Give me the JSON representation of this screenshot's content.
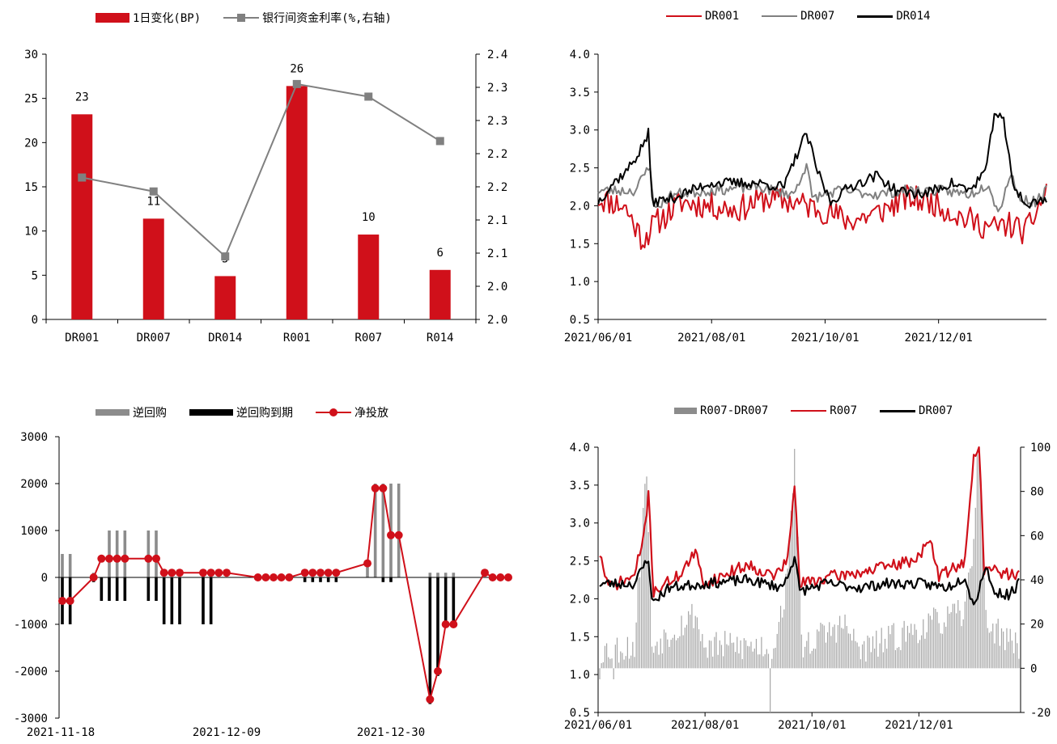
{
  "chart_data": [
    {
      "id": "tl",
      "type": "bar+line",
      "categories": [
        "DR001",
        "DR007",
        "DR014",
        "R001",
        "R007",
        "R014"
      ],
      "series": [
        {
          "name": "1日变化(BP)",
          "type": "bar",
          "axis": "left",
          "color": "#d0101a",
          "values": [
            23.2,
            11.4,
            4.9,
            26.4,
            9.6,
            5.6
          ],
          "labels": [
            "23",
            "11",
            "5",
            "26",
            "10",
            "6"
          ]
        },
        {
          "name": "银行间资金利率(%,右轴)",
          "type": "line",
          "axis": "right",
          "color": "#808080",
          "values": [
            2.214,
            2.193,
            2.095,
            2.355,
            2.336,
            2.269
          ]
        }
      ],
      "y_left": {
        "min": 0,
        "max": 30,
        "step": 5
      },
      "y_right": {
        "min": 2.0,
        "max": 2.4,
        "step": 0.05,
        "tick_labels": [
          "2.0",
          "2.0",
          "2.1",
          "2.1",
          "2.2",
          "2.2",
          "2.3",
          "2.3",
          "2.4"
        ]
      },
      "legend_position": "top",
      "grid": false
    },
    {
      "id": "tr",
      "type": "line",
      "x_ticks": [
        "2021/06/01",
        "2021/08/01",
        "2021/10/01",
        "2021/12/01"
      ],
      "x_range": [
        "2021/06/01",
        "2022/01/28"
      ],
      "y": {
        "min": 0.5,
        "max": 4.0,
        "step": 0.5,
        "tick_labels": [
          "0.5",
          "1.0",
          "1.5",
          "2.0",
          "2.5",
          "3.0",
          "3.5",
          "4.0"
        ]
      },
      "series": [
        {
          "name": "DR001",
          "color": "#d0101a",
          "generated": true,
          "seed": 11,
          "base": 2.05,
          "noise": 0.18,
          "anchors": [
            [
              0,
              2.1
            ],
            [
              14,
              2.0
            ],
            [
              24,
              1.55
            ],
            [
              30,
              1.75
            ],
            [
              45,
              2.05
            ],
            [
              60,
              2.0
            ],
            [
              75,
              1.95
            ],
            [
              90,
              2.1
            ],
            [
              105,
              2.05
            ],
            [
              120,
              1.95
            ],
            [
              135,
              1.8
            ],
            [
              150,
              1.9
            ],
            [
              165,
              2.1
            ],
            [
              180,
              2.05
            ],
            [
              195,
              1.85
            ],
            [
              212,
              1.7
            ],
            [
              221,
              1.75
            ],
            [
              230,
              1.65
            ],
            [
              241,
              2.2
            ]
          ]
        },
        {
          "name": "DR007",
          "color": "#808080",
          "generated": true,
          "seed": 23,
          "base": 2.2,
          "noise": 0.07,
          "anchors": [
            [
              0,
              2.2
            ],
            [
              20,
              2.2
            ],
            [
              28,
              2.55
            ],
            [
              30,
              1.95
            ],
            [
              40,
              2.15
            ],
            [
              60,
              2.2
            ],
            [
              85,
              2.25
            ],
            [
              105,
              2.15
            ],
            [
              112,
              2.55
            ],
            [
              115,
              2.1
            ],
            [
              130,
              2.2
            ],
            [
              150,
              2.15
            ],
            [
              165,
              2.2
            ],
            [
              185,
              2.2
            ],
            [
              200,
              2.15
            ],
            [
              210,
              2.3
            ],
            [
              215,
              1.9
            ],
            [
              222,
              2.45
            ],
            [
              226,
              2.1
            ],
            [
              235,
              2.05
            ],
            [
              241,
              2.2
            ]
          ]
        },
        {
          "name": "DR014",
          "color": "#000000",
          "generated": true,
          "seed": 37,
          "base": 2.2,
          "noise": 0.07,
          "anchors": [
            [
              0,
              2.05
            ],
            [
              8,
              2.3
            ],
            [
              15,
              2.45
            ],
            [
              22,
              2.7
            ],
            [
              27,
              2.95
            ],
            [
              29,
              2.05
            ],
            [
              40,
              2.1
            ],
            [
              60,
              2.3
            ],
            [
              85,
              2.3
            ],
            [
              100,
              2.25
            ],
            [
              108,
              2.75
            ],
            [
              112,
              2.95
            ],
            [
              118,
              2.45
            ],
            [
              125,
              2.05
            ],
            [
              135,
              2.25
            ],
            [
              150,
              2.4
            ],
            [
              160,
              2.2
            ],
            [
              175,
              2.15
            ],
            [
              190,
              2.3
            ],
            [
              200,
              2.2
            ],
            [
              209,
              2.5
            ],
            [
              213,
              3.25
            ],
            [
              218,
              3.1
            ],
            [
              223,
              2.3
            ],
            [
              230,
              2.0
            ],
            [
              241,
              2.1
            ]
          ]
        }
      ],
      "legend_position": "top",
      "grid": false
    },
    {
      "id": "bl",
      "type": "bar+line",
      "x_ticks": [
        {
          "i": 0,
          "label": "2021-11-18"
        },
        {
          "i": 21,
          "label": "2021-12-09"
        },
        {
          "i": 42,
          "label": "2021-12-30"
        }
      ],
      "x_count": 58,
      "y": {
        "min": -3000,
        "max": 3000,
        "step": 1000,
        "tick_labels": [
          "-3000",
          "-2000",
          "-1000",
          "0",
          "1000",
          "2000",
          "3000"
        ]
      },
      "series": [
        {
          "name": "逆回购",
          "type": "bar",
          "color": "#8c8c8c",
          "points": [
            [
              0,
              500
            ],
            [
              1,
              500
            ],
            [
              4,
              100
            ],
            [
              6,
              1000
            ],
            [
              7,
              1000
            ],
            [
              8,
              1000
            ],
            [
              11,
              1000
            ],
            [
              12,
              1000
            ],
            [
              18,
              100
            ],
            [
              19,
              100
            ],
            [
              39,
              300
            ],
            [
              40,
              2000
            ],
            [
              41,
              2000
            ],
            [
              42,
              2000
            ],
            [
              43,
              2000
            ],
            [
              47,
              100
            ],
            [
              48,
              100
            ],
            [
              49,
              100
            ],
            [
              50,
              100
            ]
          ]
        },
        {
          "name": "逆回购到期",
          "type": "bar",
          "color": "#000000",
          "points": [
            [
              0,
              -1000
            ],
            [
              1,
              -1000
            ],
            [
              4,
              -100
            ],
            [
              5,
              -500
            ],
            [
              6,
              -500
            ],
            [
              7,
              -500
            ],
            [
              8,
              -500
            ],
            [
              11,
              -500
            ],
            [
              12,
              -500
            ],
            [
              13,
              -1000
            ],
            [
              14,
              -1000
            ],
            [
              15,
              -1000
            ],
            [
              18,
              -1000
            ],
            [
              19,
              -1000
            ],
            [
              31,
              -100
            ],
            [
              32,
              -100
            ],
            [
              33,
              -100
            ],
            [
              34,
              -100
            ],
            [
              35,
              -100
            ],
            [
              41,
              -100
            ],
            [
              42,
              -100
            ],
            [
              47,
              -2700
            ],
            [
              48,
              -2100
            ],
            [
              49,
              -1000
            ],
            [
              50,
              -1000
            ]
          ]
        },
        {
          "name": "净投放",
          "type": "line",
          "color": "#d0101a",
          "points": [
            [
              0,
              -500
            ],
            [
              1,
              -500
            ],
            [
              4,
              0
            ],
            [
              5,
              400
            ],
            [
              6,
              400
            ],
            [
              7,
              400
            ],
            [
              8,
              400
            ],
            [
              11,
              400
            ],
            [
              12,
              400
            ],
            [
              13,
              100
            ],
            [
              14,
              100
            ],
            [
              15,
              100
            ],
            [
              18,
              100
            ],
            [
              19,
              100
            ],
            [
              20,
              100
            ],
            [
              21,
              100
            ],
            [
              25,
              0
            ],
            [
              26,
              0
            ],
            [
              27,
              0
            ],
            [
              28,
              0
            ],
            [
              29,
              0
            ],
            [
              31,
              100
            ],
            [
              32,
              100
            ],
            [
              33,
              100
            ],
            [
              34,
              100
            ],
            [
              35,
              100
            ],
            [
              39,
              300
            ],
            [
              40,
              1900
            ],
            [
              41,
              1900
            ],
            [
              42,
              900
            ],
            [
              43,
              900
            ],
            [
              47,
              -2600
            ],
            [
              48,
              -2000
            ],
            [
              49,
              -1000
            ],
            [
              50,
              -1000
            ],
            [
              54,
              100
            ],
            [
              55,
              0
            ],
            [
              56,
              0
            ],
            [
              57,
              0
            ]
          ]
        }
      ],
      "legend_position": "top",
      "grid": false
    },
    {
      "id": "br",
      "type": "bar+line",
      "x_ticks": [
        "2021/06/01",
        "2021/08/01",
        "2021/10/01",
        "2021/12/01"
      ],
      "x_range": [
        "2021/06/01",
        "2022/01/28"
      ],
      "y_left": {
        "min": 0.5,
        "max": 4.0,
        "step": 0.5,
        "tick_labels": [
          "0.5",
          "1.0",
          "1.5",
          "2.0",
          "2.5",
          "3.0",
          "3.5",
          "4.0"
        ]
      },
      "y_right": {
        "min": -20,
        "max": 100,
        "step": 20,
        "tick_labels": [
          "-20",
          "0",
          "20",
          "40",
          "60",
          "80",
          "100"
        ]
      },
      "series": [
        {
          "name": "R007-DR007",
          "type": "bar",
          "axis": "right",
          "color": "#a6a6a6",
          "generated": true,
          "seed": 53,
          "base": 8,
          "noise": 7,
          "anchors": [
            [
              0,
              8
            ],
            [
              20,
              10
            ],
            [
              24,
              60
            ],
            [
              27,
              90
            ],
            [
              30,
              10
            ],
            [
              55,
              25
            ],
            [
              60,
              10
            ],
            [
              100,
              10
            ],
            [
              108,
              40
            ],
            [
              112,
              100
            ],
            [
              116,
              10
            ],
            [
              140,
              20
            ],
            [
              150,
              8
            ],
            [
              190,
              20
            ],
            [
              210,
              25
            ],
            [
              215,
              60
            ],
            [
              218,
              110
            ],
            [
              222,
              20
            ],
            [
              241,
              10
            ]
          ],
          "forced": [
            [
              0,
              -5
            ],
            [
              8,
              -5
            ],
            [
              98,
              -45
            ]
          ]
        },
        {
          "name": "R007",
          "type": "line",
          "axis": "left",
          "color": "#d0101a",
          "generated": true,
          "seed": 71,
          "base": 2.3,
          "noise": 0.08,
          "anchors": [
            [
              0,
              2.6
            ],
            [
              5,
              2.15
            ],
            [
              20,
              2.3
            ],
            [
              25,
              2.8
            ],
            [
              28,
              3.35
            ],
            [
              31,
              2.1
            ],
            [
              45,
              2.3
            ],
            [
              55,
              2.6
            ],
            [
              60,
              2.2
            ],
            [
              85,
              2.45
            ],
            [
              100,
              2.3
            ],
            [
              108,
              2.5
            ],
            [
              112,
              3.5
            ],
            [
              115,
              2.2
            ],
            [
              135,
              2.3
            ],
            [
              150,
              2.35
            ],
            [
              180,
              2.5
            ],
            [
              190,
              2.75
            ],
            [
              195,
              2.3
            ],
            [
              210,
              2.5
            ],
            [
              215,
              3.85
            ],
            [
              218,
              4.05
            ],
            [
              221,
              2.4
            ],
            [
              241,
              2.3
            ]
          ]
        },
        {
          "name": "DR007",
          "type": "line",
          "axis": "left",
          "color": "#000000",
          "generated": true,
          "seed": 23,
          "base": 2.2,
          "noise": 0.07,
          "anchors": [
            [
              0,
              2.2
            ],
            [
              20,
              2.2
            ],
            [
              28,
              2.55
            ],
            [
              30,
              1.95
            ],
            [
              40,
              2.15
            ],
            [
              60,
              2.2
            ],
            [
              85,
              2.25
            ],
            [
              105,
              2.15
            ],
            [
              112,
              2.55
            ],
            [
              115,
              2.1
            ],
            [
              130,
              2.2
            ],
            [
              150,
              2.15
            ],
            [
              165,
              2.2
            ],
            [
              185,
              2.2
            ],
            [
              200,
              2.15
            ],
            [
              210,
              2.3
            ],
            [
              215,
              1.9
            ],
            [
              222,
              2.45
            ],
            [
              226,
              2.1
            ],
            [
              235,
              2.05
            ],
            [
              241,
              2.2
            ]
          ]
        }
      ],
      "legend_position": "top",
      "grid": false
    }
  ]
}
